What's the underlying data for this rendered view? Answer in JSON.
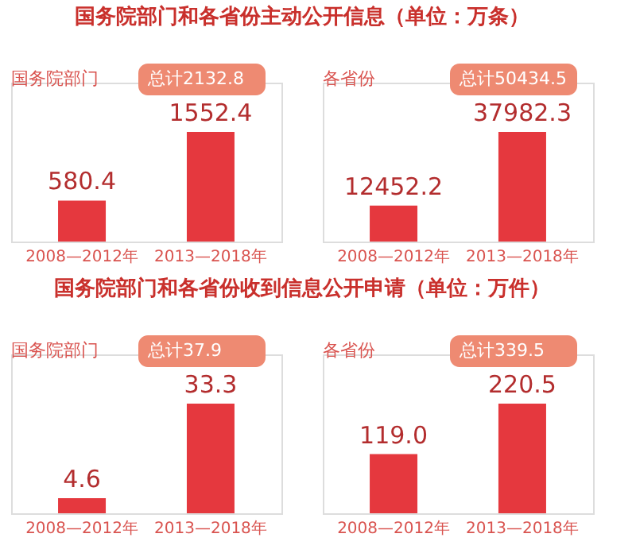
{
  "chart_data": [
    {
      "type": "bar",
      "title": "国务院部门和各省份主动公开信息（单位：万条）",
      "subtitle": "国务院部门",
      "annotations": [
        "总计2132.8"
      ],
      "categories": [
        "2008—2012年",
        "2013—2018年"
      ],
      "values": [
        580.4,
        1552.4
      ],
      "color": "#e5383e",
      "data_labels": true
    },
    {
      "type": "bar",
      "subtitle": "各省份",
      "annotations": [
        "总计50434.5"
      ],
      "categories": [
        "2008—2012年",
        "2013—2018年"
      ],
      "values": [
        12452.2,
        37982.3
      ],
      "color": "#e5383e",
      "data_labels": true
    },
    {
      "type": "bar",
      "title": "国务院部门和各省份收到信息公开申请（单位：万件）",
      "subtitle": "国务院部门",
      "annotations": [
        "总计37.9"
      ],
      "categories": [
        "2008—2012年",
        "2013—2018年"
      ],
      "values": [
        4.6,
        33.3
      ],
      "color": "#e5383e",
      "data_labels": true
    },
    {
      "type": "bar",
      "subtitle": "各省份",
      "annotations": [
        "总计339.5"
      ],
      "categories": [
        "2008—2012年",
        "2013—2018年"
      ],
      "values": [
        119.0,
        220.5
      ],
      "color": "#e5383e",
      "value_labels": [
        "119.0",
        "220.5"
      ]
    }
  ]
}
